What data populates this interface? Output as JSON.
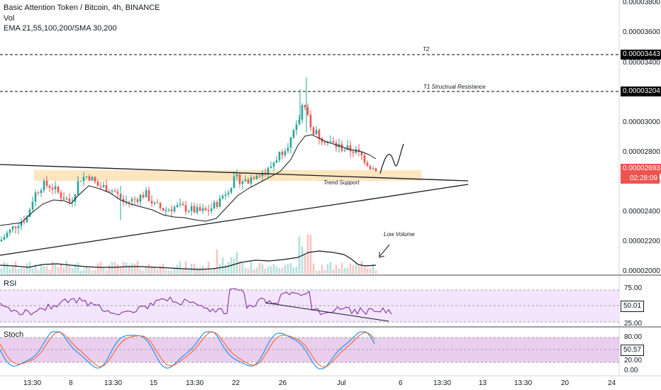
{
  "header": {
    "title": "Basic Attention Token / Bitcoin, 4h, BINANCE",
    "vol": "Vol",
    "indicators": "EMA 21,55,100,200/SMA 30,200"
  },
  "annotations": {
    "t2": "T2",
    "t1": "T1 Structrual Resistance",
    "trend_support": "Trend Support",
    "low_volume": "Low Volume"
  },
  "price_axis": {
    "ticks": [
      "0.00003800",
      "0.00003600",
      "0.00003400",
      "0.00003000",
      "0.00002800",
      "0.00002600",
      "0.00002400",
      "0.00002200",
      "0.00002000"
    ],
    "t2_tag": "0.00003443",
    "t1_tag": "0.00003204",
    "last_price": "0.00002693",
    "countdown": "02:28:09"
  },
  "rsi": {
    "label": "RSI",
    "ticks": [
      "75.00",
      "25.00"
    ],
    "value": "50.01"
  },
  "stoch": {
    "label": "Stoch",
    "ticks": [
      "80.00",
      "20.00",
      "0.00"
    ],
    "value": "50.57"
  },
  "x_axis": {
    "ticks": [
      "13:30",
      "8",
      "13:30",
      "15",
      "13:30",
      "22",
      "26",
      "Jul",
      "6",
      "13:30",
      "13",
      "13:30",
      "20",
      "24"
    ]
  },
  "colors": {
    "up": "#26a69a",
    "down": "#ef5350",
    "rsi_line": "#7b1fa2",
    "rsi_band": "#f3e5fc",
    "stoch_band": "#e1bee7",
    "zone": "#fde3b8",
    "last_price_tag": "#ef5350",
    "level_tag": "#000000"
  },
  "chart_data": [
    {
      "type": "candlestick",
      "title": "Basic Attention Token / Bitcoin, 4h, BINANCE",
      "ylim": [
        2e-05,
        3.85e-05
      ],
      "x_ticks": [
        "13:30",
        "8",
        "13:30",
        "15",
        "13:30",
        "22",
        "26",
        "Jul",
        "6",
        "13:30",
        "13",
        "13:30",
        "20",
        "24"
      ],
      "key_points": [
        {
          "x": "start",
          "y": 2.24e-05
        },
        {
          "x": "8",
          "y": 2.64e-05
        },
        {
          "x": "15",
          "y": 2.46e-05
        },
        {
          "x": "22",
          "y": 2.62e-05
        },
        {
          "x": "26 (peak)",
          "y": 3.25e-05
        },
        {
          "x": "Jul",
          "y": 2.76e-05
        },
        {
          "x": "last",
          "y": 2.693e-05
        }
      ],
      "levels": [
        {
          "name": "T2",
          "value": 3.443e-05
        },
        {
          "name": "T1 Structrual Resistance",
          "value": 3.204e-05
        }
      ],
      "series": [
        {
          "name": "EMA 21,55,100,200/SMA 30,200"
        },
        {
          "name": "Vol"
        }
      ],
      "last_value": 2.693e-05
    },
    {
      "type": "line",
      "title": "RSI",
      "ylim": [
        0,
        100
      ],
      "bands": [
        25,
        75
      ],
      "last_value": 50.01
    },
    {
      "type": "line",
      "title": "Stoch",
      "ylim": [
        0,
        100
      ],
      "bands": [
        20,
        80
      ],
      "last_value": 50.57
    }
  ]
}
